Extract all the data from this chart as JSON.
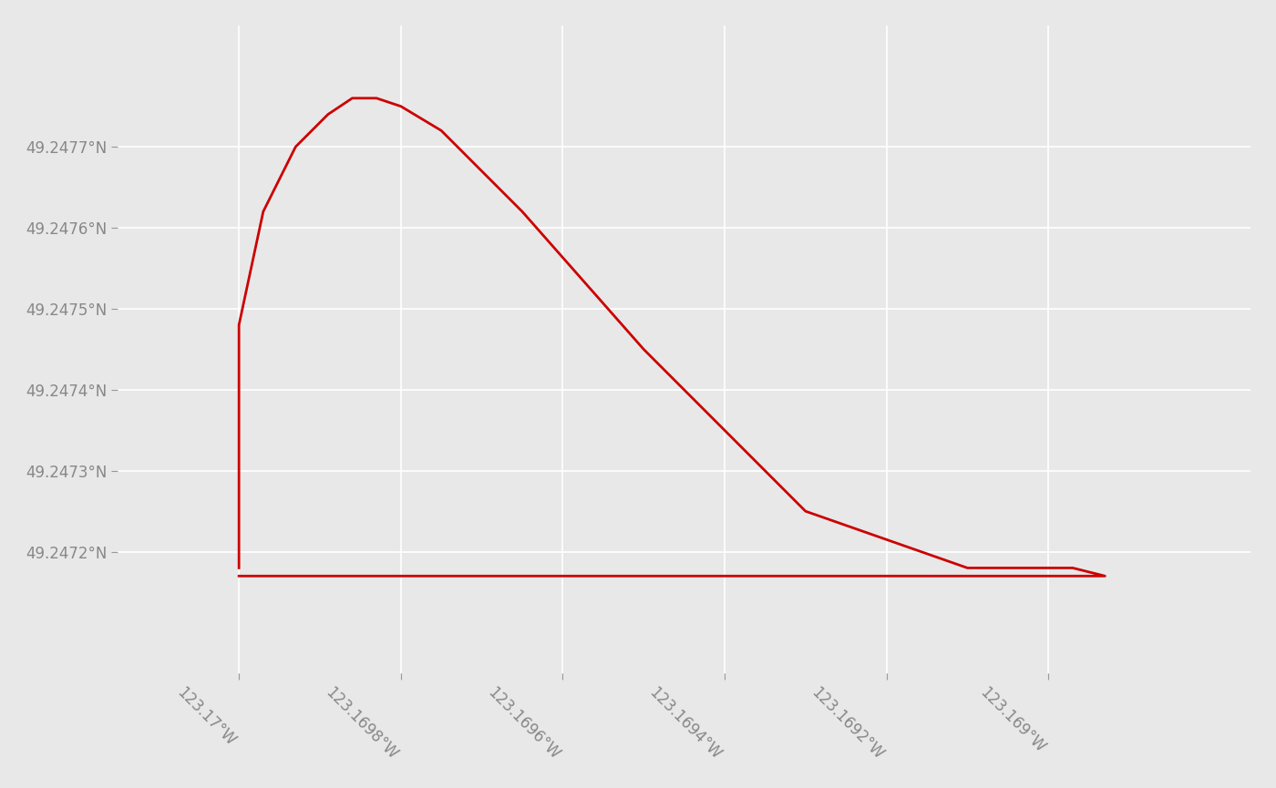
{
  "line_color": "#cc0000",
  "line_width": 2.0,
  "background_color": "#e8e8e8",
  "grid_color": "#ffffff",
  "tick_color": "#888888",
  "xlim": [
    -123.17015,
    -123.16875
  ],
  "ylim": [
    49.24705,
    49.24785
  ],
  "xticks": [
    -123.17,
    -123.1698,
    -123.1696,
    -123.1694,
    -123.1692,
    -123.169
  ],
  "yticks": [
    49.2472,
    49.2473,
    49.2474,
    49.2475,
    49.2476,
    49.2477
  ],
  "px": [
    -123.17,
    -123.17,
    -123.16997,
    -123.16993,
    -123.16989,
    -123.16986,
    -123.16983,
    -123.1698,
    -123.16975,
    -123.16965,
    -123.1695,
    -123.1693,
    -123.1691,
    -123.16897,
    -123.16893,
    -123.16893,
    -123.16893,
    -123.17
  ],
  "py": [
    49.24718,
    49.24748,
    49.24762,
    49.2477,
    49.24774,
    49.24776,
    49.24776,
    49.24775,
    49.24772,
    49.24762,
    49.24745,
    49.24725,
    49.24718,
    49.24718,
    49.24717,
    49.24717,
    49.24717,
    49.24717
  ]
}
